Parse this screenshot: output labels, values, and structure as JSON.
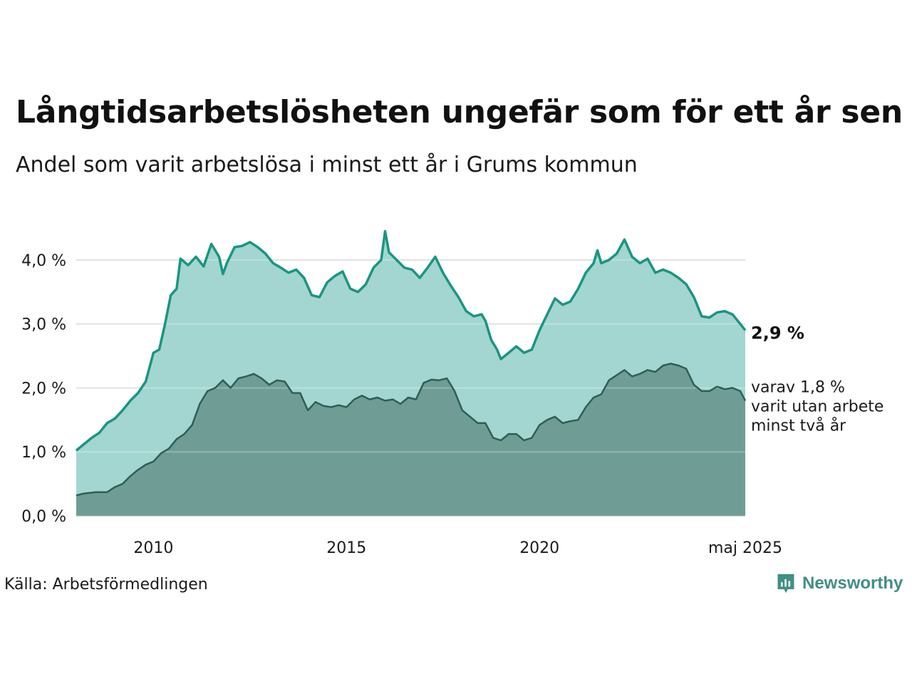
{
  "title": "Långtidsarbetslösheten ungefär som för ett år sen",
  "subtitle": "Andel som varit arbetslösa i minst ett år i Grums kommun",
  "source": "Källa: Arbetsförmedlingen",
  "brand": "Newsworthy",
  "colors": {
    "upper_line": "#1a9580",
    "upper_fill": "#a3d6d0",
    "lower_line": "#2f5e55",
    "lower_fill": "#6f9d96",
    "grid": "#d9d9d9",
    "logo": "#3f8f84"
  },
  "chart_data": {
    "type": "area",
    "x_range": [
      "2008-01",
      "2025-05"
    ],
    "ylim": [
      0,
      4.5
    ],
    "y_ticks": [
      0,
      1,
      2,
      3,
      4
    ],
    "y_tick_labels": [
      "0,0 %",
      "1,0 %",
      "2,0 %",
      "3,0 %",
      "4,0 %"
    ],
    "x_ticks": [
      {
        "x": 2010,
        "label": "2010"
      },
      {
        "x": 2015,
        "label": "2015"
      },
      {
        "x": 2020,
        "label": "2020"
      },
      {
        "x": 2025.33,
        "label": "maj 2025"
      }
    ],
    "grid": true,
    "series": [
      {
        "key": "minst_ett_ar",
        "end_label": "2,9 %",
        "points": [
          [
            2008.0,
            1.02
          ],
          [
            2008.2,
            1.12
          ],
          [
            2008.4,
            1.22
          ],
          [
            2008.6,
            1.3
          ],
          [
            2008.8,
            1.45
          ],
          [
            2009.0,
            1.52
          ],
          [
            2009.2,
            1.65
          ],
          [
            2009.4,
            1.8
          ],
          [
            2009.6,
            1.92
          ],
          [
            2009.8,
            2.1
          ],
          [
            2010.0,
            2.55
          ],
          [
            2010.15,
            2.6
          ],
          [
            2010.3,
            3.0
          ],
          [
            2010.45,
            3.45
          ],
          [
            2010.6,
            3.55
          ],
          [
            2010.7,
            4.02
          ],
          [
            2010.9,
            3.92
          ],
          [
            2011.1,
            4.05
          ],
          [
            2011.3,
            3.9
          ],
          [
            2011.5,
            4.25
          ],
          [
            2011.7,
            4.05
          ],
          [
            2011.8,
            3.78
          ],
          [
            2011.9,
            3.95
          ],
          [
            2012.1,
            4.2
          ],
          [
            2012.3,
            4.22
          ],
          [
            2012.5,
            4.28
          ],
          [
            2012.7,
            4.2
          ],
          [
            2012.9,
            4.1
          ],
          [
            2013.1,
            3.95
          ],
          [
            2013.3,
            3.88
          ],
          [
            2013.5,
            3.8
          ],
          [
            2013.7,
            3.85
          ],
          [
            2013.9,
            3.72
          ],
          [
            2014.1,
            3.45
          ],
          [
            2014.3,
            3.42
          ],
          [
            2014.5,
            3.65
          ],
          [
            2014.7,
            3.75
          ],
          [
            2014.9,
            3.82
          ],
          [
            2015.1,
            3.55
          ],
          [
            2015.3,
            3.5
          ],
          [
            2015.5,
            3.62
          ],
          [
            2015.7,
            3.88
          ],
          [
            2015.9,
            4.0
          ],
          [
            2016.0,
            4.45
          ],
          [
            2016.1,
            4.12
          ],
          [
            2016.3,
            4.0
          ],
          [
            2016.5,
            3.88
          ],
          [
            2016.7,
            3.85
          ],
          [
            2016.9,
            3.72
          ],
          [
            2017.1,
            3.88
          ],
          [
            2017.3,
            4.05
          ],
          [
            2017.5,
            3.8
          ],
          [
            2017.7,
            3.6
          ],
          [
            2017.9,
            3.42
          ],
          [
            2018.1,
            3.2
          ],
          [
            2018.3,
            3.12
          ],
          [
            2018.5,
            3.15
          ],
          [
            2018.6,
            3.05
          ],
          [
            2018.75,
            2.75
          ],
          [
            2018.9,
            2.6
          ],
          [
            2019.0,
            2.45
          ],
          [
            2019.2,
            2.55
          ],
          [
            2019.4,
            2.65
          ],
          [
            2019.6,
            2.55
          ],
          [
            2019.8,
            2.6
          ],
          [
            2020.0,
            2.9
          ],
          [
            2020.2,
            3.15
          ],
          [
            2020.4,
            3.4
          ],
          [
            2020.6,
            3.3
          ],
          [
            2020.8,
            3.35
          ],
          [
            2021.0,
            3.55
          ],
          [
            2021.2,
            3.8
          ],
          [
            2021.4,
            3.95
          ],
          [
            2021.5,
            4.15
          ],
          [
            2021.6,
            3.95
          ],
          [
            2021.8,
            4.0
          ],
          [
            2022.0,
            4.1
          ],
          [
            2022.2,
            4.32
          ],
          [
            2022.4,
            4.05
          ],
          [
            2022.6,
            3.95
          ],
          [
            2022.8,
            4.02
          ],
          [
            2023.0,
            3.8
          ],
          [
            2023.2,
            3.85
          ],
          [
            2023.4,
            3.8
          ],
          [
            2023.6,
            3.72
          ],
          [
            2023.8,
            3.62
          ],
          [
            2024.0,
            3.42
          ],
          [
            2024.2,
            3.12
          ],
          [
            2024.4,
            3.1
          ],
          [
            2024.6,
            3.18
          ],
          [
            2024.8,
            3.2
          ],
          [
            2025.0,
            3.15
          ],
          [
            2025.2,
            3.0
          ],
          [
            2025.33,
            2.9
          ]
        ]
      },
      {
        "key": "minst_tva_ar",
        "end_label": "varav 1,8 %\nvarit utan arbete\nminst två år",
        "end_label_lines": [
          "varav 1,8 %",
          "varit utan arbete",
          "minst två år"
        ],
        "points": [
          [
            2008.0,
            0.32
          ],
          [
            2008.2,
            0.35
          ],
          [
            2008.5,
            0.37
          ],
          [
            2008.8,
            0.37
          ],
          [
            2009.0,
            0.45
          ],
          [
            2009.2,
            0.5
          ],
          [
            2009.4,
            0.62
          ],
          [
            2009.6,
            0.72
          ],
          [
            2009.8,
            0.8
          ],
          [
            2010.0,
            0.85
          ],
          [
            2010.2,
            0.98
          ],
          [
            2010.4,
            1.05
          ],
          [
            2010.6,
            1.2
          ],
          [
            2010.8,
            1.28
          ],
          [
            2011.0,
            1.42
          ],
          [
            2011.2,
            1.75
          ],
          [
            2011.4,
            1.95
          ],
          [
            2011.6,
            2.0
          ],
          [
            2011.8,
            2.12
          ],
          [
            2012.0,
            2.0
          ],
          [
            2012.2,
            2.15
          ],
          [
            2012.4,
            2.18
          ],
          [
            2012.6,
            2.22
          ],
          [
            2012.8,
            2.15
          ],
          [
            2013.0,
            2.05
          ],
          [
            2013.2,
            2.12
          ],
          [
            2013.4,
            2.1
          ],
          [
            2013.6,
            1.92
          ],
          [
            2013.8,
            1.92
          ],
          [
            2014.0,
            1.65
          ],
          [
            2014.2,
            1.78
          ],
          [
            2014.4,
            1.72
          ],
          [
            2014.6,
            1.7
          ],
          [
            2014.8,
            1.73
          ],
          [
            2015.0,
            1.7
          ],
          [
            2015.2,
            1.82
          ],
          [
            2015.4,
            1.88
          ],
          [
            2015.6,
            1.82
          ],
          [
            2015.8,
            1.85
          ],
          [
            2016.0,
            1.8
          ],
          [
            2016.2,
            1.82
          ],
          [
            2016.4,
            1.75
          ],
          [
            2016.6,
            1.85
          ],
          [
            2016.8,
            1.82
          ],
          [
            2017.0,
            2.08
          ],
          [
            2017.2,
            2.13
          ],
          [
            2017.4,
            2.12
          ],
          [
            2017.6,
            2.15
          ],
          [
            2017.8,
            1.95
          ],
          [
            2018.0,
            1.65
          ],
          [
            2018.2,
            1.55
          ],
          [
            2018.4,
            1.45
          ],
          [
            2018.6,
            1.45
          ],
          [
            2018.8,
            1.22
          ],
          [
            2019.0,
            1.18
          ],
          [
            2019.2,
            1.28
          ],
          [
            2019.4,
            1.28
          ],
          [
            2019.6,
            1.18
          ],
          [
            2019.8,
            1.22
          ],
          [
            2020.0,
            1.42
          ],
          [
            2020.2,
            1.5
          ],
          [
            2020.4,
            1.55
          ],
          [
            2020.6,
            1.45
          ],
          [
            2020.8,
            1.48
          ],
          [
            2021.0,
            1.5
          ],
          [
            2021.2,
            1.7
          ],
          [
            2021.4,
            1.85
          ],
          [
            2021.6,
            1.9
          ],
          [
            2021.8,
            2.12
          ],
          [
            2022.0,
            2.2
          ],
          [
            2022.2,
            2.28
          ],
          [
            2022.4,
            2.18
          ],
          [
            2022.6,
            2.22
          ],
          [
            2022.8,
            2.28
          ],
          [
            2023.0,
            2.25
          ],
          [
            2023.2,
            2.35
          ],
          [
            2023.4,
            2.38
          ],
          [
            2023.6,
            2.35
          ],
          [
            2023.8,
            2.3
          ],
          [
            2024.0,
            2.05
          ],
          [
            2024.2,
            1.95
          ],
          [
            2024.4,
            1.95
          ],
          [
            2024.6,
            2.02
          ],
          [
            2024.8,
            1.98
          ],
          [
            2025.0,
            2.0
          ],
          [
            2025.2,
            1.95
          ],
          [
            2025.33,
            1.8
          ]
        ]
      }
    ]
  }
}
